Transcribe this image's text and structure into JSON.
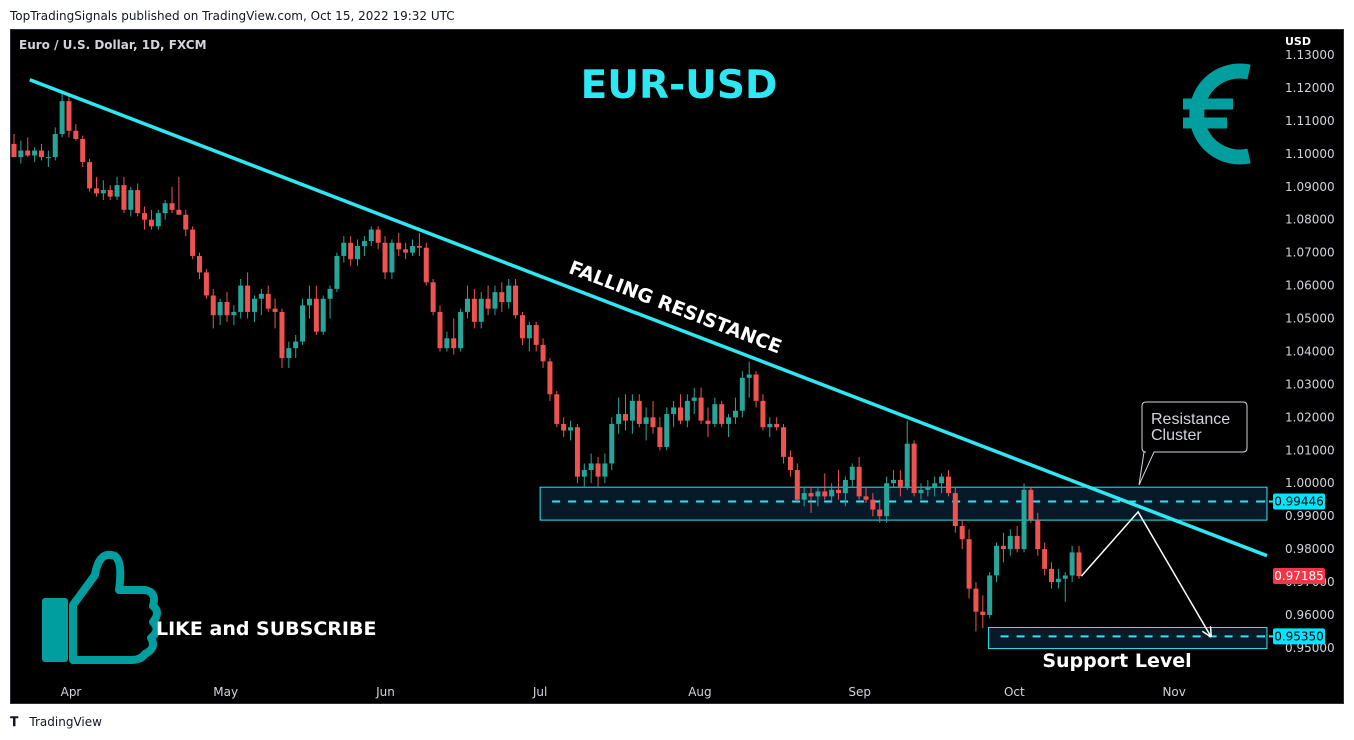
{
  "publisher_line": "TopTradingSignals published on TradingView.com, Oct 15, 2022 19:32 UTC",
  "footer": {
    "brand": "TradingView",
    "logo": "tradingview-logo-icon"
  },
  "colors": {
    "background": "#000000",
    "bullish": "#26a69a",
    "bearish": "#ef5350",
    "trendline": "#2de8f3",
    "axis_text": "#d1d4dc",
    "current_price_badge": "#f23645",
    "level_badge": "#00e5ff"
  },
  "icons": [
    "euro-icon",
    "thumbs-up-icon"
  ],
  "chart_data": {
    "type": "candlestick",
    "symbol_title": "Euro / U.S. Dollar, 1D, FXCM",
    "big_title": "EUR-USD",
    "currency_label": "USD",
    "y_axis_ticks": [
      "1.13000",
      "1.12000",
      "1.11000",
      "1.10000",
      "1.09000",
      "1.08000",
      "1.07000",
      "1.06000",
      "1.05000",
      "1.04000",
      "1.03000",
      "1.02000",
      "1.01000",
      "1.00000",
      "0.99000",
      "0.98000",
      "0.97000",
      "0.96000",
      "0.95000"
    ],
    "x_axis_ticks": [
      "Apr",
      "May",
      "Jun",
      "Jul",
      "Aug",
      "Sep",
      "Oct",
      "Nov"
    ],
    "ylim": [
      0.945,
      1.1335
    ],
    "grid": false,
    "price_labels": {
      "resistance_level": "0.99446",
      "current_price": "0.97185",
      "support_level": "0.95350"
    },
    "annotations": {
      "trendline_label": "FALLING RESISTANCE",
      "callout": [
        "Resistance",
        "Cluster"
      ],
      "support_label": "Support Level",
      "cta": "LIKE and SUBSCRIBE"
    },
    "trendline": {
      "start": [
        "Mar 24",
        1.1225
      ],
      "end": [
        "Nov 19",
        0.978
      ]
    },
    "resistance_zone": {
      "high": 0.9988,
      "low": 0.9888,
      "from": "Jul 1",
      "to": "Nov 19",
      "level": 0.99446
    },
    "support_zone": {
      "high": 0.9562,
      "low": 0.9498,
      "from": "Sep 26",
      "to": "Nov 19",
      "level": 0.9535
    },
    "projection_path": [
      [
        "Oct 14",
        0.9718
      ],
      [
        "Oct 25",
        0.9913
      ],
      [
        "Nov 8",
        0.9538
      ]
    ],
    "candles": [
      {
        "o": 1.103,
        "h": 1.106,
        "l": 1.099,
        "c": 1.099
      },
      {
        "o": 1.099,
        "h": 1.104,
        "l": 1.097,
        "c": 1.101
      },
      {
        "o": 1.101,
        "h": 1.105,
        "l": 1.099,
        "c": 1.0995
      },
      {
        "o": 1.0995,
        "h": 1.102,
        "l": 1.0975,
        "c": 1.101
      },
      {
        "o": 1.101,
        "h": 1.103,
        "l": 1.098,
        "c": 1.099
      },
      {
        "o": 1.099,
        "h": 1.101,
        "l": 1.096,
        "c": 1.099
      },
      {
        "o": 1.099,
        "h": 1.108,
        "l": 1.098,
        "c": 1.106
      },
      {
        "o": 1.106,
        "h": 1.1185,
        "l": 1.105,
        "c": 1.116
      },
      {
        "o": 1.116,
        "h": 1.1185,
        "l": 1.105,
        "c": 1.107
      },
      {
        "o": 1.107,
        "h": 1.109,
        "l": 1.104,
        "c": 1.1045
      },
      {
        "o": 1.1045,
        "h": 1.1055,
        "l": 1.096,
        "c": 1.0975
      },
      {
        "o": 1.0975,
        "h": 1.0985,
        "l": 1.0885,
        "c": 1.0895
      },
      {
        "o": 1.0895,
        "h": 1.093,
        "l": 1.087,
        "c": 1.088
      },
      {
        "o": 1.088,
        "h": 1.092,
        "l": 1.086,
        "c": 1.089
      },
      {
        "o": 1.089,
        "h": 1.0905,
        "l": 1.086,
        "c": 1.087
      },
      {
        "o": 1.087,
        "h": 1.093,
        "l": 1.086,
        "c": 1.0905
      },
      {
        "o": 1.0905,
        "h": 1.093,
        "l": 1.082,
        "c": 1.083
      },
      {
        "o": 1.083,
        "h": 1.09,
        "l": 1.081,
        "c": 1.089
      },
      {
        "o": 1.089,
        "h": 1.091,
        "l": 1.081,
        "c": 1.082
      },
      {
        "o": 1.082,
        "h": 1.084,
        "l": 1.077,
        "c": 1.08
      },
      {
        "o": 1.08,
        "h": 1.083,
        "l": 1.077,
        "c": 1.078
      },
      {
        "o": 1.078,
        "h": 1.083,
        "l": 1.077,
        "c": 1.082
      },
      {
        "o": 1.082,
        "h": 1.086,
        "l": 1.08,
        "c": 1.085
      },
      {
        "o": 1.085,
        "h": 1.09,
        "l": 1.082,
        "c": 1.083
      },
      {
        "o": 1.083,
        "h": 1.093,
        "l": 1.082,
        "c": 1.0815
      },
      {
        "o": 1.0815,
        "h": 1.083,
        "l": 1.075,
        "c": 1.077
      },
      {
        "o": 1.077,
        "h": 1.078,
        "l": 1.068,
        "c": 1.069
      },
      {
        "o": 1.069,
        "h": 1.07,
        "l": 1.062,
        "c": 1.064
      },
      {
        "o": 1.064,
        "h": 1.065,
        "l": 1.056,
        "c": 1.057
      },
      {
        "o": 1.057,
        "h": 1.059,
        "l": 1.047,
        "c": 1.051
      },
      {
        "o": 1.051,
        "h": 1.056,
        "l": 1.048,
        "c": 1.055
      },
      {
        "o": 1.055,
        "h": 1.058,
        "l": 1.049,
        "c": 1.051
      },
      {
        "o": 1.051,
        "h": 1.054,
        "l": 1.048,
        "c": 1.052
      },
      {
        "o": 1.052,
        "h": 1.062,
        "l": 1.05,
        "c": 1.06
      },
      {
        "o": 1.06,
        "h": 1.064,
        "l": 1.05,
        "c": 1.052
      },
      {
        "o": 1.052,
        "h": 1.057,
        "l": 1.049,
        "c": 1.056
      },
      {
        "o": 1.056,
        "h": 1.059,
        "l": 1.051,
        "c": 1.0575
      },
      {
        "o": 1.0575,
        "h": 1.06,
        "l": 1.052,
        "c": 1.053
      },
      {
        "o": 1.053,
        "h": 1.056,
        "l": 1.047,
        "c": 1.052
      },
      {
        "o": 1.052,
        "h": 1.053,
        "l": 1.035,
        "c": 1.038
      },
      {
        "o": 1.038,
        "h": 1.043,
        "l": 1.035,
        "c": 1.041
      },
      {
        "o": 1.041,
        "h": 1.045,
        "l": 1.038,
        "c": 1.043
      },
      {
        "o": 1.043,
        "h": 1.056,
        "l": 1.042,
        "c": 1.054
      },
      {
        "o": 1.054,
        "h": 1.06,
        "l": 1.05,
        "c": 1.056
      },
      {
        "o": 1.056,
        "h": 1.06,
        "l": 1.045,
        "c": 1.046
      },
      {
        "o": 1.046,
        "h": 1.057,
        "l": 1.045,
        "c": 1.056
      },
      {
        "o": 1.056,
        "h": 1.06,
        "l": 1.05,
        "c": 1.059
      },
      {
        "o": 1.059,
        "h": 1.07,
        "l": 1.058,
        "c": 1.069
      },
      {
        "o": 1.069,
        "h": 1.075,
        "l": 1.067,
        "c": 1.073
      },
      {
        "o": 1.073,
        "h": 1.075,
        "l": 1.066,
        "c": 1.068
      },
      {
        "o": 1.068,
        "h": 1.074,
        "l": 1.066,
        "c": 1.072
      },
      {
        "o": 1.072,
        "h": 1.075,
        "l": 1.069,
        "c": 1.0735
      },
      {
        "o": 1.0735,
        "h": 1.078,
        "l": 1.072,
        "c": 1.077
      },
      {
        "o": 1.077,
        "h": 1.078,
        "l": 1.071,
        "c": 1.073
      },
      {
        "o": 1.073,
        "h": 1.075,
        "l": 1.062,
        "c": 1.064
      },
      {
        "o": 1.064,
        "h": 1.074,
        "l": 1.062,
        "c": 1.073
      },
      {
        "o": 1.073,
        "h": 1.076,
        "l": 1.069,
        "c": 1.071
      },
      {
        "o": 1.071,
        "h": 1.073,
        "l": 1.068,
        "c": 1.07
      },
      {
        "o": 1.07,
        "h": 1.074,
        "l": 1.069,
        "c": 1.072
      },
      {
        "o": 1.072,
        "h": 1.076,
        "l": 1.069,
        "c": 1.0715
      },
      {
        "o": 1.0715,
        "h": 1.073,
        "l": 1.06,
        "c": 1.061
      },
      {
        "o": 1.061,
        "h": 1.062,
        "l": 1.051,
        "c": 1.052
      },
      {
        "o": 1.052,
        "h": 1.054,
        "l": 1.04,
        "c": 1.041
      },
      {
        "o": 1.041,
        "h": 1.046,
        "l": 1.04,
        "c": 1.044
      },
      {
        "o": 1.044,
        "h": 1.05,
        "l": 1.039,
        "c": 1.041
      },
      {
        "o": 1.041,
        "h": 1.053,
        "l": 1.04,
        "c": 1.052
      },
      {
        "o": 1.052,
        "h": 1.06,
        "l": 1.05,
        "c": 1.056
      },
      {
        "o": 1.056,
        "h": 1.059,
        "l": 1.047,
        "c": 1.049
      },
      {
        "o": 1.049,
        "h": 1.058,
        "l": 1.047,
        "c": 1.056
      },
      {
        "o": 1.056,
        "h": 1.06,
        "l": 1.051,
        "c": 1.053
      },
      {
        "o": 1.053,
        "h": 1.06,
        "l": 1.051,
        "c": 1.058
      },
      {
        "o": 1.058,
        "h": 1.061,
        "l": 1.052,
        "c": 1.055
      },
      {
        "o": 1.055,
        "h": 1.062,
        "l": 1.053,
        "c": 1.06
      },
      {
        "o": 1.06,
        "h": 1.062,
        "l": 1.05,
        "c": 1.051
      },
      {
        "o": 1.051,
        "h": 1.052,
        "l": 1.042,
        "c": 1.044
      },
      {
        "o": 1.044,
        "h": 1.049,
        "l": 1.04,
        "c": 1.048
      },
      {
        "o": 1.048,
        "h": 1.049,
        "l": 1.04,
        "c": 1.042
      },
      {
        "o": 1.042,
        "h": 1.044,
        "l": 1.035,
        "c": 1.037
      },
      {
        "o": 1.037,
        "h": 1.038,
        "l": 1.025,
        "c": 1.027
      },
      {
        "o": 1.027,
        "h": 1.028,
        "l": 1.017,
        "c": 1.018
      },
      {
        "o": 1.018,
        "h": 1.02,
        "l": 1.014,
        "c": 1.016
      },
      {
        "o": 1.016,
        "h": 1.019,
        "l": 1.013,
        "c": 1.017
      },
      {
        "o": 1.017,
        "h": 1.018,
        "l": 1.0,
        "c": 1.002
      },
      {
        "o": 1.002,
        "h": 1.006,
        "l": 0.999,
        "c": 1.004
      },
      {
        "o": 1.004,
        "h": 1.009,
        "l": 1.0,
        "c": 1.006
      },
      {
        "o": 1.006,
        "h": 1.008,
        "l": 0.999,
        "c": 1.002
      },
      {
        "o": 1.002,
        "h": 1.009,
        "l": 1.0,
        "c": 1.006
      },
      {
        "o": 1.006,
        "h": 1.02,
        "l": 1.004,
        "c": 1.018
      },
      {
        "o": 1.018,
        "h": 1.026,
        "l": 1.015,
        "c": 1.021
      },
      {
        "o": 1.021,
        "h": 1.027,
        "l": 1.016,
        "c": 1.019
      },
      {
        "o": 1.019,
        "h": 1.027,
        "l": 1.015,
        "c": 1.025
      },
      {
        "o": 1.025,
        "h": 1.027,
        "l": 1.017,
        "c": 1.018
      },
      {
        "o": 1.018,
        "h": 1.023,
        "l": 1.013,
        "c": 1.02
      },
      {
        "o": 1.02,
        "h": 1.025,
        "l": 1.015,
        "c": 1.017
      },
      {
        "o": 1.017,
        "h": 1.02,
        "l": 1.01,
        "c": 1.011
      },
      {
        "o": 1.011,
        "h": 1.023,
        "l": 1.01,
        "c": 1.021
      },
      {
        "o": 1.021,
        "h": 1.025,
        "l": 1.017,
        "c": 1.023
      },
      {
        "o": 1.023,
        "h": 1.027,
        "l": 1.018,
        "c": 1.019
      },
      {
        "o": 1.019,
        "h": 1.027,
        "l": 1.017,
        "c": 1.025
      },
      {
        "o": 1.025,
        "h": 1.029,
        "l": 1.021,
        "c": 1.026
      },
      {
        "o": 1.026,
        "h": 1.029,
        "l": 1.018,
        "c": 1.019
      },
      {
        "o": 1.019,
        "h": 1.023,
        "l": 1.014,
        "c": 1.018
      },
      {
        "o": 1.018,
        "h": 1.026,
        "l": 1.017,
        "c": 1.024
      },
      {
        "o": 1.024,
        "h": 1.025,
        "l": 1.017,
        "c": 1.018
      },
      {
        "o": 1.018,
        "h": 1.021,
        "l": 1.014,
        "c": 1.02
      },
      {
        "o": 1.02,
        "h": 1.026,
        "l": 1.018,
        "c": 1.022
      },
      {
        "o": 1.022,
        "h": 1.034,
        "l": 1.02,
        "c": 1.032
      },
      {
        "o": 1.032,
        "h": 1.037,
        "l": 1.026,
        "c": 1.033
      },
      {
        "o": 1.033,
        "h": 1.034,
        "l": 1.023,
        "c": 1.025
      },
      {
        "o": 1.025,
        "h": 1.027,
        "l": 1.016,
        "c": 1.017
      },
      {
        "o": 1.017,
        "h": 1.02,
        "l": 1.014,
        "c": 1.018
      },
      {
        "o": 1.018,
        "h": 1.02,
        "l": 1.016,
        "c": 1.017
      },
      {
        "o": 1.017,
        "h": 1.018,
        "l": 1.006,
        "c": 1.008
      },
      {
        "o": 1.008,
        "h": 1.01,
        "l": 1.002,
        "c": 1.004
      },
      {
        "o": 1.004,
        "h": 1.006,
        "l": 0.994,
        "c": 0.995
      },
      {
        "o": 0.995,
        "h": 0.999,
        "l": 0.993,
        "c": 0.997
      },
      {
        "o": 0.997,
        "h": 0.999,
        "l": 0.991,
        "c": 0.996
      },
      {
        "o": 0.996,
        "h": 0.9985,
        "l": 0.993,
        "c": 0.9975
      },
      {
        "o": 0.9975,
        "h": 1.003,
        "l": 0.995,
        "c": 0.996
      },
      {
        "o": 0.996,
        "h": 1.0,
        "l": 0.994,
        "c": 0.998
      },
      {
        "o": 0.998,
        "h": 1.004,
        "l": 0.995,
        "c": 0.997
      },
      {
        "o": 0.997,
        "h": 1.002,
        "l": 0.993,
        "c": 1.001
      },
      {
        "o": 1.001,
        "h": 1.006,
        "l": 0.999,
        "c": 1.005
      },
      {
        "o": 1.005,
        "h": 1.008,
        "l": 0.995,
        "c": 0.996
      },
      {
        "o": 0.996,
        "h": 0.999,
        "l": 0.994,
        "c": 0.995
      },
      {
        "o": 0.995,
        "h": 0.997,
        "l": 0.99,
        "c": 0.992
      },
      {
        "o": 0.992,
        "h": 0.995,
        "l": 0.988,
        "c": 0.99
      },
      {
        "o": 0.99,
        "h": 1.002,
        "l": 0.988,
        "c": 1.0
      },
      {
        "o": 1.0,
        "h": 1.004,
        "l": 0.999,
        "c": 1.001
      },
      {
        "o": 1.001,
        "h": 1.004,
        "l": 0.996,
        "c": 0.999
      },
      {
        "o": 0.999,
        "h": 1.019,
        "l": 0.998,
        "c": 1.012
      },
      {
        "o": 1.012,
        "h": 1.013,
        "l": 0.996,
        "c": 0.997
      },
      {
        "o": 0.997,
        "h": 1.0,
        "l": 0.995,
        "c": 0.998
      },
      {
        "o": 0.998,
        "h": 1.001,
        "l": 0.996,
        "c": 0.999
      },
      {
        "o": 0.999,
        "h": 1.002,
        "l": 0.996,
        "c": 1.0
      },
      {
        "o": 1.0,
        "h": 1.003,
        "l": 0.997,
        "c": 1.002
      },
      {
        "o": 1.002,
        "h": 1.004,
        "l": 0.996,
        "c": 0.997
      },
      {
        "o": 0.997,
        "h": 0.999,
        "l": 0.985,
        "c": 0.987
      },
      {
        "o": 0.987,
        "h": 0.989,
        "l": 0.98,
        "c": 0.983
      },
      {
        "o": 0.983,
        "h": 0.986,
        "l": 0.965,
        "c": 0.968
      },
      {
        "o": 0.968,
        "h": 0.97,
        "l": 0.955,
        "c": 0.961
      },
      {
        "o": 0.961,
        "h": 0.966,
        "l": 0.956,
        "c": 0.96
      },
      {
        "o": 0.96,
        "h": 0.973,
        "l": 0.959,
        "c": 0.972
      },
      {
        "o": 0.972,
        "h": 0.982,
        "l": 0.97,
        "c": 0.981
      },
      {
        "o": 0.981,
        "h": 0.985,
        "l": 0.976,
        "c": 0.98
      },
      {
        "o": 0.98,
        "h": 0.986,
        "l": 0.978,
        "c": 0.984
      },
      {
        "o": 0.984,
        "h": 0.987,
        "l": 0.979,
        "c": 0.98
      },
      {
        "o": 0.98,
        "h": 0.9999,
        "l": 0.979,
        "c": 0.998
      },
      {
        "o": 0.998,
        "h": 0.999,
        "l": 0.988,
        "c": 0.989
      },
      {
        "o": 0.989,
        "h": 0.991,
        "l": 0.978,
        "c": 0.98
      },
      {
        "o": 0.98,
        "h": 0.982,
        "l": 0.972,
        "c": 0.974
      },
      {
        "o": 0.974,
        "h": 0.976,
        "l": 0.968,
        "c": 0.97
      },
      {
        "o": 0.97,
        "h": 0.974,
        "l": 0.968,
        "c": 0.971
      },
      {
        "o": 0.971,
        "h": 0.973,
        "l": 0.964,
        "c": 0.972
      },
      {
        "o": 0.972,
        "h": 0.981,
        "l": 0.97,
        "c": 0.979
      },
      {
        "o": 0.979,
        "h": 0.981,
        "l": 0.971,
        "c": 0.9718
      }
    ]
  }
}
